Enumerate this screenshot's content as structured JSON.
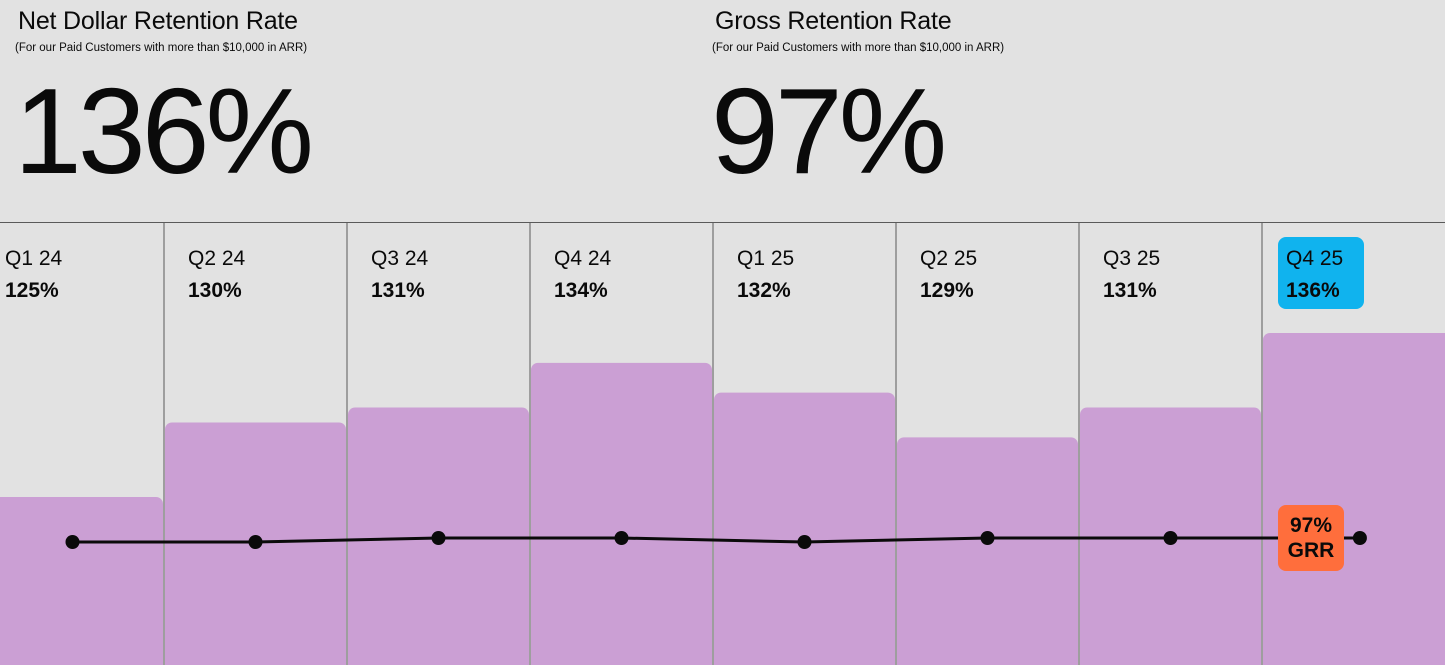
{
  "ndr": {
    "title": "Net Dollar Retention Rate",
    "subtitle": "(For our Paid Customers with more than $10,000 in ARR)",
    "value": "136%"
  },
  "grr": {
    "title": "Gross Retention Rate",
    "subtitle": "(For our Paid Customers with more than $10,000 in ARR)",
    "value": "97%"
  },
  "chart_data": {
    "type": "bar",
    "categories": [
      "Q1 24",
      "Q2 24",
      "Q3 24",
      "Q4 24",
      "Q1 25",
      "Q2 25",
      "Q3 25",
      "Q4 25"
    ],
    "value_labels": [
      "125%",
      "130%",
      "131%",
      "134%",
      "132%",
      "129%",
      "131%",
      "136%"
    ],
    "series": [
      {
        "type": "bar",
        "values": [
          125,
          130,
          131,
          134,
          132,
          129,
          131,
          136
        ]
      },
      {
        "type": "line",
        "values": [
          96.7,
          96.7,
          97,
          97,
          96.7,
          97,
          97,
          97
        ]
      }
    ],
    "line_end_label": [
      "97%",
      "GRR"
    ],
    "highlight_index": 7,
    "colors": {
      "bar": "#cb9fd4",
      "line": "#0a0a0a",
      "highlight_badge": "#10b3ee",
      "grr_badge": "#ff6e3c",
      "background": "#e2e2e2",
      "divider": "#5a5a5a"
    }
  }
}
